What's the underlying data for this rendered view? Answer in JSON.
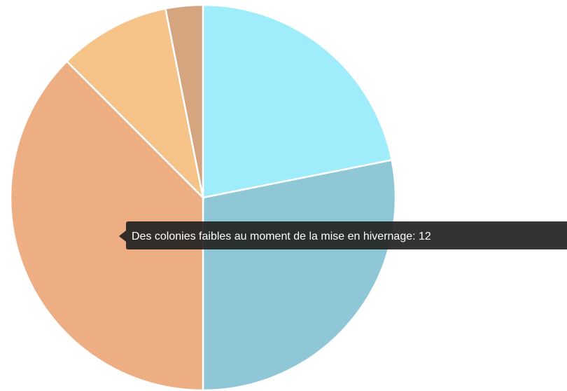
{
  "chart_data": {
    "type": "pie",
    "categories": [
      null,
      null,
      "Des colonies faibles au moment de la mise en hivernage",
      null,
      null
    ],
    "values": [
      7,
      9,
      12,
      3,
      1
    ],
    "colors": [
      "#9fecfa",
      "#8fc7d7",
      "#eeae84",
      "#f6c488",
      "#d5a580"
    ],
    "highlighted": 2
  }
}
